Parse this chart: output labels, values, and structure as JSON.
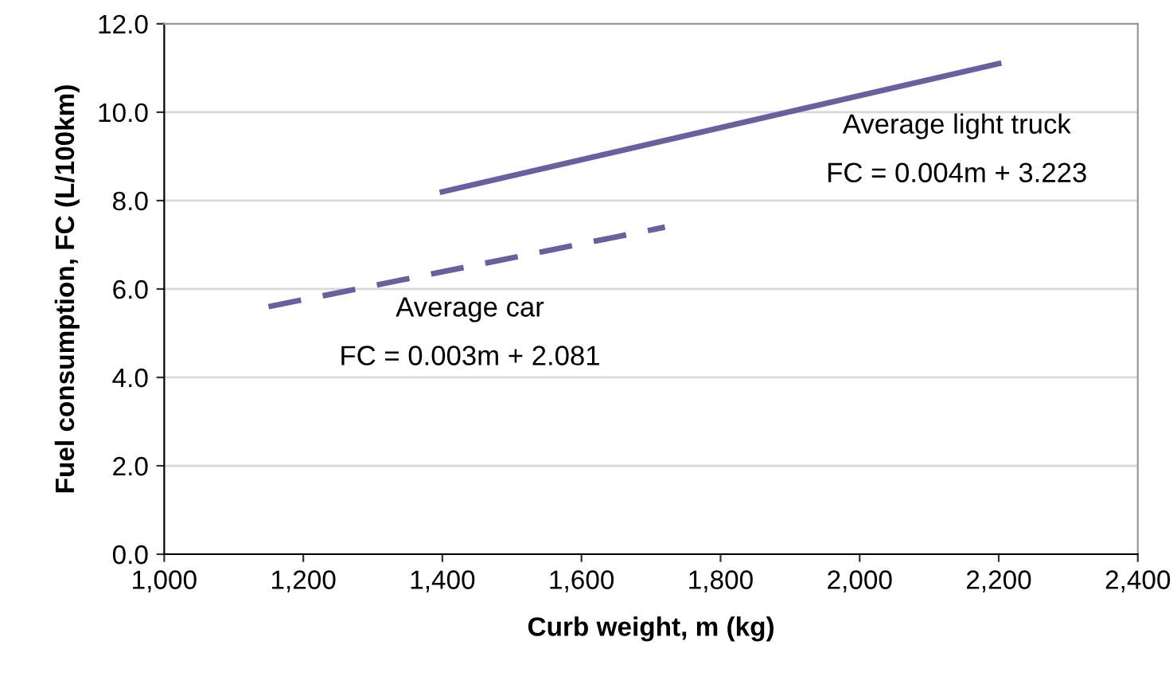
{
  "chart_data": {
    "type": "line",
    "xlabel": "Curb weight, m (kg)",
    "ylabel": "Fuel consumption, FC (L/100km)",
    "series": [
      {
        "name": "Average light truck",
        "color": "#6b5fa0",
        "x": [
          1400,
          2200
        ],
        "values": [
          8.2,
          11.1
        ],
        "line_style": "solid"
      },
      {
        "name": "Average car",
        "color": "#6b5fa0",
        "x": [
          1150,
          1720
        ],
        "values": [
          5.6,
          7.4
        ],
        "line_style": "dashed"
      }
    ],
    "annotations": [
      "FC = 0.004m + 3.223",
      "FC = 0.003m + 2.081"
    ],
    "xlim": [
      1000,
      2400
    ],
    "xticks": [
      {
        "value": 1000,
        "label": "1,000"
      },
      {
        "value": 1200,
        "label": "1,200"
      },
      {
        "value": 1400,
        "label": "1,400"
      },
      {
        "value": 1600,
        "label": "1,600"
      },
      {
        "value": 1800,
        "label": "1,800"
      },
      {
        "value": 2000,
        "label": "2,000"
      },
      {
        "value": 2200,
        "label": "2,200"
      },
      {
        "value": 2400,
        "label": "2,400"
      }
    ],
    "ylim": [
      0,
      12
    ],
    "yticks": [
      {
        "value": 0,
        "label": "0.0"
      },
      {
        "value": 2,
        "label": "2.0"
      },
      {
        "value": 4,
        "label": "4.0"
      },
      {
        "value": 6,
        "label": "6.0"
      },
      {
        "value": 8,
        "label": "8.0"
      },
      {
        "value": 10,
        "label": "10.0"
      },
      {
        "value": 12,
        "label": "12.0"
      }
    ],
    "grid": "y",
    "legend": false,
    "marker": "none"
  }
}
